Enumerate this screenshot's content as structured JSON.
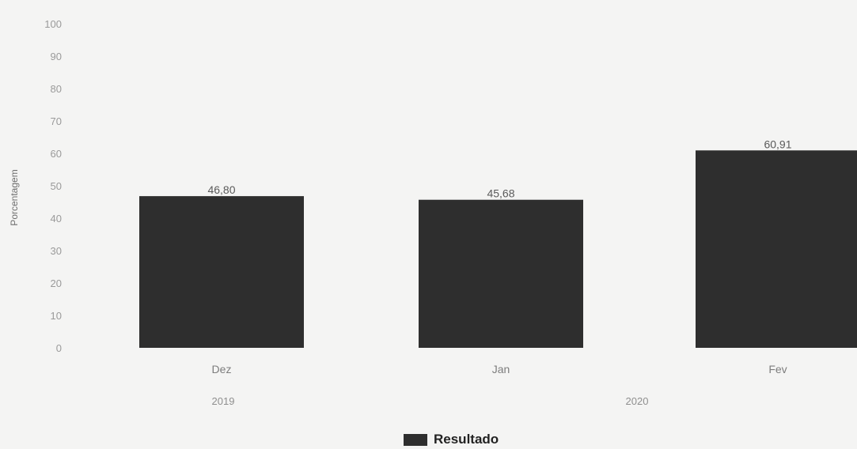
{
  "chart_data": {
    "type": "bar",
    "ylabel": "Porcentagem",
    "ylim": [
      0,
      100
    ],
    "yticks": [
      0,
      10,
      20,
      30,
      40,
      50,
      60,
      70,
      80,
      90,
      100
    ],
    "categories": [
      "Dez",
      "Jan",
      "Fev"
    ],
    "category_groups": [
      {
        "label": "2019",
        "categories": [
          "Dez"
        ]
      },
      {
        "label": "2020",
        "categories": [
          "Jan",
          "Fev"
        ]
      }
    ],
    "series": [
      {
        "name": "Resultado",
        "color": "#2e2e2e",
        "values": [
          46.8,
          45.68,
          60.91
        ],
        "value_labels": [
          "46,80",
          "45,68",
          "60,91"
        ]
      }
    ],
    "legend_position": "bottom-center",
    "grid": false
  }
}
